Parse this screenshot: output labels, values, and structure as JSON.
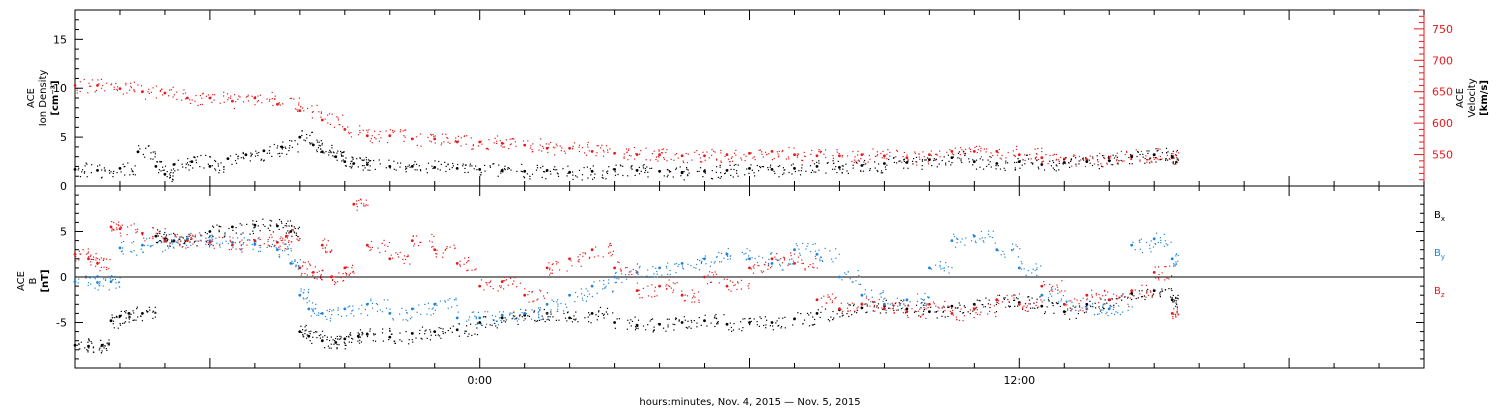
{
  "figure": {
    "x_caption": "hours:minutes, Nov.  4, 2015 — Nov.  5, 2015"
  },
  "chart_data": [
    {
      "type": "scatter",
      "title": "",
      "ylabel_left": [
        "ACE",
        "Ion Density",
        "[cm⁻³]"
      ],
      "ylabel_right": [
        "ACE",
        "Velocity",
        "[km/s]"
      ],
      "x_unit": "hours since Nov 4 00:00",
      "xlim": [
        -9,
        21
      ],
      "x_ticks": [
        {
          "x": 0,
          "label": "0:00"
        },
        {
          "x": 12,
          "label": "12:00"
        }
      ],
      "ylim_left": [
        0,
        18
      ],
      "yticks_left": [
        0,
        5,
        10,
        15
      ],
      "ylim_right": [
        500,
        780
      ],
      "yticks_right": [
        550,
        600,
        650,
        700,
        750
      ],
      "series": [
        {
          "name": "Ion Density",
          "axis": "left",
          "color": "#000000",
          "x": [
            -9.0,
            -8.5,
            -8.0,
            -7.6,
            -7.2,
            -7.0,
            -6.8,
            -6.4,
            -6.0,
            -5.6,
            -5.2,
            -4.8,
            -4.4,
            -4.0,
            -3.7,
            -3.5,
            -3.2,
            -3.0,
            -2.8,
            -2.5,
            -2.0,
            -1.5,
            -1.0,
            -0.5,
            0.0,
            0.5,
            1.0,
            1.5,
            2.0,
            2.5,
            3.0,
            3.5,
            4.0,
            4.5,
            5.0,
            5.5,
            6.0,
            6.5,
            7.0,
            7.5,
            8.0,
            8.5,
            9.0,
            9.5,
            10.0,
            10.5,
            11.0,
            11.5,
            12.0,
            12.5,
            13.0,
            13.5,
            14.0,
            14.5,
            15.0,
            15.4
          ],
          "y": [
            1.7,
            1.6,
            1.8,
            3.5,
            2.0,
            1.2,
            2.2,
            2.5,
            2.0,
            2.8,
            3.2,
            3.6,
            4.0,
            5.0,
            4.2,
            3.5,
            3.0,
            2.5,
            2.3,
            2.2,
            2.0,
            2.0,
            1.9,
            1.8,
            1.7,
            1.6,
            1.5,
            1.6,
            1.4,
            1.5,
            1.7,
            1.6,
            1.5,
            1.4,
            1.5,
            1.6,
            1.8,
            1.7,
            1.8,
            2.0,
            1.9,
            2.1,
            2.3,
            2.4,
            2.7,
            2.9,
            2.5,
            2.3,
            2.5,
            2.2,
            2.4,
            2.5,
            2.6,
            3.0,
            3.2,
            3.0
          ]
        },
        {
          "name": "Velocity",
          "axis": "right",
          "color": "#e8191c",
          "x": [
            -9.0,
            -8.5,
            -8.0,
            -7.5,
            -7.0,
            -6.5,
            -6.0,
            -5.5,
            -5.0,
            -4.5,
            -4.0,
            -3.5,
            -3.0,
            -2.5,
            -2.0,
            -1.5,
            -1.0,
            -0.5,
            0.0,
            0.5,
            1.0,
            1.5,
            2.0,
            2.5,
            3.0,
            3.5,
            4.0,
            4.5,
            5.0,
            5.5,
            6.0,
            6.5,
            7.0,
            7.5,
            8.0,
            8.5,
            9.0,
            9.5,
            10.0,
            10.5,
            11.0,
            11.5,
            12.0,
            12.5,
            13.0,
            13.5,
            14.0,
            14.5,
            15.0,
            15.4
          ],
          "y": [
            660,
            660,
            655,
            650,
            648,
            640,
            640,
            635,
            640,
            630,
            620,
            605,
            590,
            580,
            580,
            575,
            575,
            570,
            570,
            568,
            565,
            560,
            560,
            555,
            552,
            550,
            550,
            548,
            548,
            550,
            552,
            555,
            550,
            548,
            548,
            550,
            548,
            545,
            550,
            555,
            555,
            555,
            550,
            545,
            543,
            542,
            545,
            548,
            550,
            545
          ]
        }
      ]
    },
    {
      "type": "scatter",
      "title": "",
      "ylabel_left": [
        "ACE",
        "B",
        "[nT]"
      ],
      "x_unit": "hours since Nov 4 00:00",
      "xlim": [
        -9,
        21
      ],
      "x_ticks": [
        {
          "x": 0,
          "label": "0:00"
        },
        {
          "x": 12,
          "label": "12:00"
        }
      ],
      "ylim_left": [
        -10,
        10
      ],
      "yticks_left": [
        -5,
        0,
        5
      ],
      "zero_line": true,
      "series": [
        {
          "name": "B",
          "sub": "x",
          "color": "#000000",
          "x": [
            -9.0,
            -8.7,
            -8.4,
            -8.2,
            -8.0,
            -7.8,
            -7.5,
            -7.2,
            -7.0,
            -6.8,
            -6.5,
            -6.0,
            -5.5,
            -5.0,
            -4.5,
            -4.2,
            -4.0,
            -3.8,
            -3.5,
            -3.2,
            -3.0,
            -2.7,
            -2.5,
            -2.0,
            -1.5,
            -1.0,
            -0.5,
            0.0,
            0.5,
            1.0,
            1.5,
            2.0,
            2.5,
            3.0,
            3.5,
            4.0,
            4.5,
            5.0,
            5.5,
            6.0,
            6.5,
            7.0,
            7.5,
            8.0,
            8.5,
            9.0,
            9.5,
            10.0,
            10.5,
            11.0,
            11.5,
            12.0,
            12.5,
            13.0,
            13.5,
            14.0,
            14.5,
            15.0,
            15.4
          ],
          "y": [
            -7.5,
            -7.6,
            -7.5,
            -4.8,
            -4.3,
            -4.0,
            -4.0,
            4.5,
            4.2,
            4.0,
            4.2,
            5.0,
            5.5,
            5.7,
            5.6,
            5.0,
            -6.0,
            -6.5,
            -7.0,
            -7.2,
            -6.8,
            -6.5,
            -6.3,
            -6.6,
            -6.2,
            -6.0,
            -5.8,
            -5.0,
            -4.5,
            -4.2,
            -4.0,
            -4.5,
            -4.0,
            -5.0,
            -5.3,
            -5.2,
            -5.0,
            -4.8,
            -5.2,
            -5.0,
            -5.0,
            -4.6,
            -4.0,
            -3.6,
            -3.4,
            -3.2,
            -3.5,
            -3.8,
            -3.2,
            -3.0,
            -2.5,
            -2.8,
            -3.2,
            -3.8,
            -3.0,
            -2.5,
            -1.8,
            -1.5,
            -2.5
          ]
        },
        {
          "name": "B",
          "sub": "y",
          "color": "#1f84d6",
          "x": [
            -9.0,
            -8.5,
            -8.2,
            -8.0,
            -7.5,
            -7.0,
            -6.5,
            -6.0,
            -5.5,
            -5.0,
            -4.5,
            -4.2,
            -4.0,
            -3.8,
            -3.5,
            -3.0,
            -2.5,
            -2.0,
            -1.5,
            -1.0,
            -0.5,
            0.0,
            0.5,
            1.0,
            1.5,
            2.0,
            2.5,
            3.0,
            3.5,
            4.0,
            4.5,
            5.0,
            5.5,
            6.0,
            6.5,
            7.0,
            7.5,
            8.0,
            8.5,
            9.0,
            9.5,
            10.0,
            10.5,
            11.0,
            11.5,
            12.0,
            12.5,
            13.0,
            13.5,
            14.0,
            14.5,
            15.0,
            15.4
          ],
          "y": [
            -0.5,
            -0.6,
            -0.5,
            3.2,
            3.5,
            4.0,
            4.2,
            4.0,
            3.8,
            3.6,
            3.0,
            1.5,
            -2.0,
            -3.5,
            -4.0,
            -3.5,
            -3.0,
            -4.0,
            -3.5,
            -3.0,
            -4.5,
            -4.5,
            -4.2,
            -4.0,
            -3.0,
            -2.0,
            -1.0,
            0.0,
            0.5,
            1.0,
            1.5,
            2.0,
            2.5,
            2.0,
            1.5,
            3.0,
            2.5,
            0.0,
            -2.0,
            -3.0,
            -2.5,
            1.0,
            4.0,
            4.5,
            3.0,
            1.0,
            -2.0,
            -3.0,
            -3.5,
            -3.5,
            3.5,
            4.2,
            2.0
          ]
        },
        {
          "name": "B",
          "sub": "z",
          "color": "#e8191c",
          "x": [
            -9.0,
            -8.7,
            -8.5,
            -8.2,
            -8.0,
            -7.5,
            -7.0,
            -6.5,
            -6.0,
            -5.5,
            -5.0,
            -4.5,
            -4.3,
            -4.0,
            -3.7,
            -3.5,
            -3.3,
            -3.0,
            -2.8,
            -2.5,
            -2.0,
            -1.5,
            -1.0,
            -0.5,
            0.0,
            0.5,
            1.0,
            1.5,
            2.0,
            2.5,
            3.0,
            3.5,
            4.0,
            4.5,
            5.0,
            5.5,
            6.0,
            6.5,
            7.0,
            7.5,
            8.0,
            8.5,
            9.0,
            9.5,
            10.0,
            10.5,
            11.0,
            11.5,
            12.0,
            12.5,
            13.0,
            13.5,
            14.0,
            14.5,
            15.0,
            15.4
          ],
          "y": [
            2.5,
            2.0,
            1.5,
            5.5,
            5.3,
            4.8,
            4.0,
            4.0,
            3.8,
            3.5,
            4.0,
            3.8,
            4.5,
            1.0,
            0.5,
            3.5,
            0.0,
            1.0,
            8.0,
            3.5,
            2.0,
            4.0,
            3.0,
            1.5,
            -1.0,
            -0.5,
            -2.0,
            1.0,
            2.0,
            3.0,
            1.0,
            -1.5,
            -1.0,
            -2.0,
            0.0,
            -1.0,
            1.0,
            2.0,
            1.5,
            -2.5,
            -3.5,
            -3.0,
            -3.5,
            -3.8,
            -3.0,
            -4.0,
            -3.5,
            -2.5,
            -3.0,
            -1.0,
            -3.0,
            -2.0,
            -2.5,
            -1.5,
            0.5,
            -4.0
          ]
        }
      ]
    }
  ]
}
